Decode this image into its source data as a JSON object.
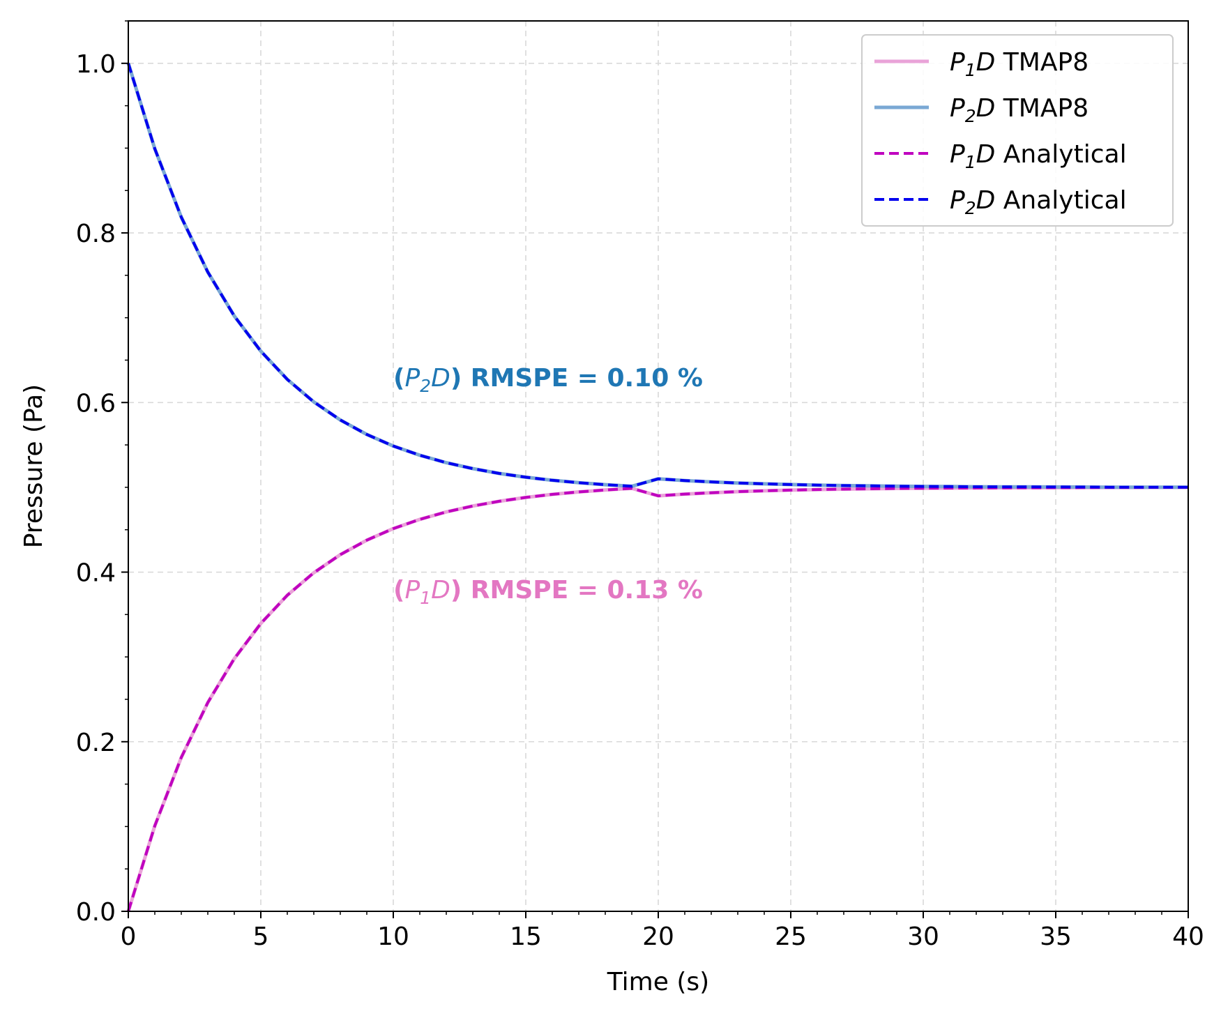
{
  "chart_data": {
    "type": "line",
    "xlabel": "Time (s)",
    "ylabel": "Pressure (Pa)",
    "xlim": [
      0,
      40
    ],
    "ylim": [
      0,
      1.05
    ],
    "x_ticks": [
      0,
      5,
      10,
      15,
      20,
      25,
      30,
      35,
      40
    ],
    "y_ticks": [
      0.0,
      0.2,
      0.4,
      0.6,
      0.8,
      1.0
    ],
    "x_tick_labels": [
      "0",
      "5",
      "10",
      "15",
      "20",
      "25",
      "30",
      "35",
      "40"
    ],
    "y_tick_labels": [
      "0.0",
      "0.2",
      "0.4",
      "0.6",
      "0.8",
      "1.0"
    ],
    "grid": true,
    "legend_position": "top-right",
    "x": [
      0,
      1,
      2,
      3,
      4,
      5,
      6,
      7,
      8,
      9,
      10,
      11,
      12,
      13,
      14,
      15,
      16,
      17,
      18,
      19,
      20,
      21,
      22,
      23,
      24,
      25,
      26,
      27,
      28,
      29,
      30,
      31,
      32,
      33,
      34,
      35,
      36,
      37,
      38,
      39,
      40
    ],
    "series": [
      {
        "name_base": "P",
        "name_sub": "1",
        "name_var": "D",
        "name_suffix": " TMAP8",
        "color": "#e9a3d8",
        "style": "solid",
        "values": [
          0.0,
          0.1008,
          0.1815,
          0.2462,
          0.298,
          0.3394,
          0.3727,
          0.3993,
          0.4206,
          0.4377,
          0.4513,
          0.4622,
          0.471,
          0.478,
          0.4836,
          0.4881,
          0.4917,
          0.4946,
          0.4969,
          0.4988,
          0.49,
          0.492,
          0.4936,
          0.4949,
          0.4959,
          0.4967,
          0.4974,
          0.4979,
          0.4983,
          0.4987,
          0.4989,
          0.4991,
          0.4993,
          0.4994,
          0.4995,
          0.4996,
          0.4997,
          0.4998,
          0.4998,
          0.4999,
          0.4999
        ]
      },
      {
        "name_base": "P",
        "name_sub": "2",
        "name_var": "D",
        "name_suffix": " TMAP8",
        "color": "#7aa8d4",
        "style": "solid",
        "values": [
          1.0,
          0.8992,
          0.8185,
          0.7538,
          0.702,
          0.6606,
          0.6273,
          0.6007,
          0.5794,
          0.5623,
          0.5487,
          0.5378,
          0.529,
          0.522,
          0.5164,
          0.5119,
          0.5083,
          0.5054,
          0.5031,
          0.5012,
          0.51,
          0.508,
          0.5064,
          0.5051,
          0.5041,
          0.5033,
          0.5026,
          0.5021,
          0.5017,
          0.5013,
          0.5011,
          0.5009,
          0.5007,
          0.5006,
          0.5005,
          0.5004,
          0.5003,
          0.5002,
          0.5002,
          0.5001,
          0.5001
        ]
      },
      {
        "name_base": "P",
        "name_sub": "1",
        "name_var": "D",
        "name_suffix": " Analytical",
        "color": "#bf00bf",
        "style": "dashed",
        "values": [
          0.0,
          0.1008,
          0.1815,
          0.2462,
          0.298,
          0.3394,
          0.3727,
          0.3993,
          0.4206,
          0.4377,
          0.4513,
          0.4622,
          0.471,
          0.478,
          0.4836,
          0.4881,
          0.4917,
          0.4946,
          0.4969,
          0.4988,
          0.49,
          0.492,
          0.4936,
          0.4949,
          0.4959,
          0.4967,
          0.4974,
          0.4979,
          0.4983,
          0.4987,
          0.4989,
          0.4991,
          0.4993,
          0.4994,
          0.4995,
          0.4996,
          0.4997,
          0.4998,
          0.4998,
          0.4999,
          0.4999
        ]
      },
      {
        "name_base": "P",
        "name_sub": "2",
        "name_var": "D",
        "name_suffix": " Analytical",
        "color": "#0000ee",
        "style": "dashed",
        "values": [
          1.0,
          0.8992,
          0.8185,
          0.7538,
          0.702,
          0.6606,
          0.6273,
          0.6007,
          0.5794,
          0.5623,
          0.5487,
          0.5378,
          0.529,
          0.522,
          0.5164,
          0.5119,
          0.5083,
          0.5054,
          0.5031,
          0.5012,
          0.51,
          0.508,
          0.5064,
          0.5051,
          0.5041,
          0.5033,
          0.5026,
          0.5021,
          0.5017,
          0.5013,
          0.5011,
          0.5009,
          0.5007,
          0.5006,
          0.5005,
          0.5004,
          0.5003,
          0.5002,
          0.5002,
          0.5001,
          0.5001
        ]
      }
    ],
    "annotations": [
      {
        "prefix": "(",
        "var_base": "P",
        "var_sub": "2",
        "var_name": "D",
        "text": ") RMSPE = 0.10 %",
        "color": "#1f77b4",
        "x": 10,
        "y": 0.63
      },
      {
        "prefix": "(",
        "var_base": "P",
        "var_sub": "1",
        "var_name": "D",
        "text": ") RMSPE = 0.13 %",
        "color": "#e377c2",
        "x": 10,
        "y": 0.38
      }
    ]
  }
}
